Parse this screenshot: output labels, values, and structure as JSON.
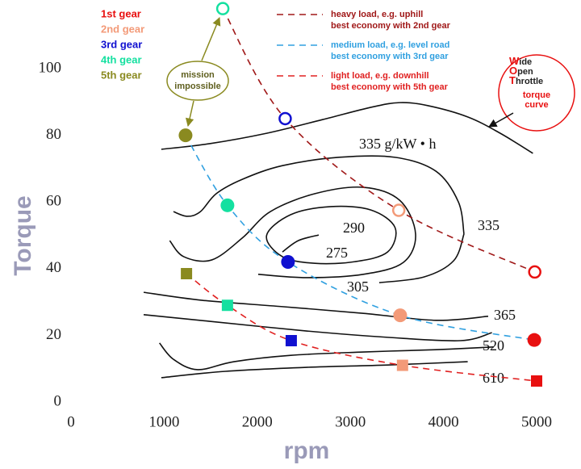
{
  "chart_data": {
    "type": "contour",
    "x_label": "rpm",
    "y_label": "Torque",
    "xlim": [
      0,
      5000
    ],
    "xticks": [
      0,
      1000,
      2000,
      3000,
      4000,
      5000
    ],
    "ylim": [
      0,
      100
    ],
    "yticks": [
      0,
      20,
      40,
      60,
      80,
      100
    ],
    "gears": [
      {
        "name": "1st gear",
        "color": "#e81010"
      },
      {
        "name": "2nd gear",
        "color": "#f39a78"
      },
      {
        "name": "3rd gear",
        "color": "#1010d0"
      },
      {
        "name": "4th gear",
        "color": "#14e0a0"
      },
      {
        "name": "5th gear",
        "color": "#8a8a20"
      }
    ],
    "series": [
      {
        "name": "heavy load, e.g. uphill",
        "note": "best economy with 2nd gear",
        "color": "#a01818",
        "marker": "open-circle",
        "x": [
          1630,
          2300,
          3520,
          4980
        ],
        "values": [
          118,
          85,
          57.5,
          39
        ],
        "marker_colors": [
          "#14e0a0",
          "#1010d0",
          "#f39a78",
          "#e81010"
        ]
      },
      {
        "name": "medium load, e.g. level road",
        "note": "best economy with 3rd gear",
        "color": "#30a0e0",
        "marker": "circle",
        "x": [
          1230,
          1680,
          2330,
          3535,
          4975
        ],
        "values": [
          80,
          59,
          42,
          26,
          18.6
        ],
        "marker_colors": [
          "#8a8a20",
          "#14e0a0",
          "#1010d0",
          "#f39a78",
          "#e81010"
        ]
      },
      {
        "name": "light load, e.g. downhill",
        "note": "best economy with 5th gear",
        "color": "#e02020",
        "marker": "square",
        "x": [
          1240,
          1680,
          2365,
          3560,
          5000
        ],
        "values": [
          38.5,
          29,
          18.4,
          11,
          6.3
        ],
        "marker_colors": [
          "#8a8a20",
          "#14e0a0",
          "#1010d0",
          "#f39a78",
          "#e81010"
        ]
      }
    ],
    "torque_curve": {
      "label": [
        "Wide",
        "Open",
        "Throttle"
      ],
      "sublabel": [
        "torque",
        "curve"
      ],
      "x": [
        970,
        1490,
        2100,
        2700,
        3220,
        3530,
        3830,
        4260,
        4610,
        4960
      ],
      "values": [
        75.8,
        77.5,
        80.6,
        84.7,
        88.4,
        89.8,
        88.9,
        85.5,
        80.6,
        74.6
      ]
    },
    "contours": [
      {
        "label": "335 g/kW • h",
        "x": [
          1100,
          1250,
          1390,
          1560,
          1840,
          2270,
          2880,
          3480,
          3920,
          4160,
          4220
        ],
        "values": [
          57.1,
          55.7,
          57.1,
          62.5,
          66.8,
          70.9,
          73.4,
          73.4,
          69.2,
          60.0,
          50.4
        ]
      },
      {
        "label": "335",
        "x": [
          4220,
          4110,
          3790,
          3310
        ],
        "values": [
          50.4,
          42.4,
          37.5,
          35.8
        ]
      },
      {
        "label": "305",
        "x": [
          1060,
          1210,
          1510,
          1840,
          2140,
          2620,
          3140,
          3530,
          3700,
          3570,
          3140,
          2530,
          2010
        ],
        "values": [
          48.4,
          43.6,
          42.6,
          49.2,
          57.1,
          62.5,
          64.4,
          60.5,
          50.4,
          41.9,
          38.3,
          37.3,
          38.3
        ]
      },
      {
        "label": "290",
        "closed": true,
        "x": [
          2100,
          2360,
          2790,
          3220,
          3480,
          3400,
          3050,
          2620,
          2270
        ],
        "values": [
          49.9,
          56.2,
          58.6,
          57.6,
          52.3,
          45.0,
          42.1,
          41.6,
          43.6
        ]
      },
      {
        "label": "275",
        "x": [
          2270,
          2440,
          2660
        ],
        "values": [
          45.0,
          48.4,
          50.1
        ]
      },
      {
        "label": "365",
        "x": [
          780,
          1410,
          2270,
          3140,
          3920,
          4480
        ],
        "values": [
          32.9,
          30.5,
          28.6,
          26.6,
          24.5,
          25.7
        ]
      },
      {
        "x": [
          780,
          1490,
          2530,
          3400,
          4180,
          4520
        ],
        "values": [
          26.2,
          24.2,
          21.3,
          19.4,
          18.4,
          20.8
        ]
      },
      {
        "label": "520",
        "x": [
          950,
          1100,
          1360,
          1750,
          2360,
          3140,
          3920,
          4540
        ],
        "values": [
          17.7,
          12.8,
          9.7,
          12.1,
          14.0,
          15.0,
          15.7,
          16.5
        ]
      },
      {
        "label": "610",
        "x": [
          970,
          1660,
          2530,
          3400,
          4260
        ],
        "values": [
          7.3,
          9.2,
          10.4,
          11.1,
          12.1
        ]
      }
    ],
    "annotation": [
      "mission",
      "impossible"
    ]
  }
}
